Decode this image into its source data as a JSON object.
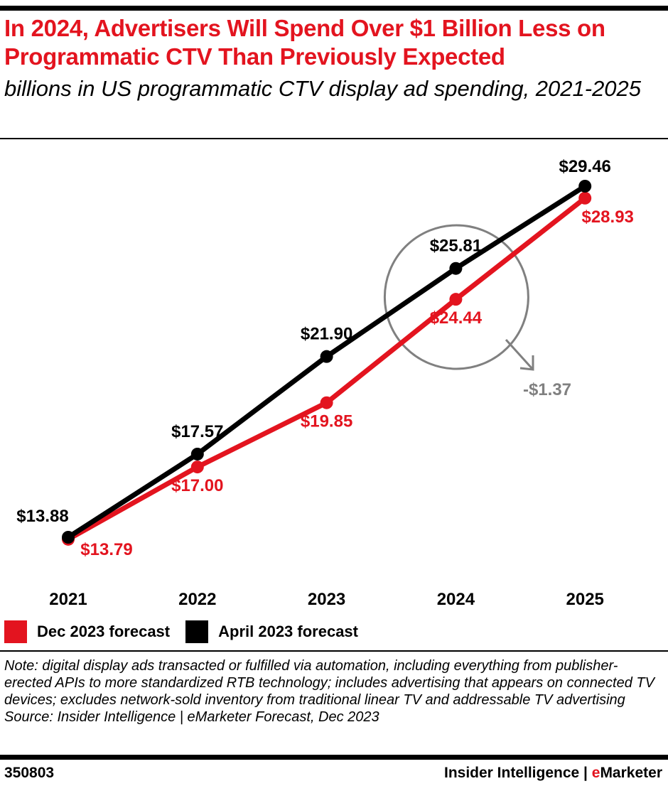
{
  "header": {
    "title": "In 2024, Advertisers Will Spend Over $1 Billion Less on Programmatic CTV Than Previously Expected",
    "subtitle": "billions in US programmatic CTV display ad spending, 2021-2025"
  },
  "chart_data": {
    "type": "line",
    "title": "In 2024, Advertisers Will Spend Over $1 Billion Less on Programmatic CTV Than Previously Expected",
    "subtitle": "billions in US programmatic CTV display ad spending, 2021-2025",
    "categories": [
      "2021",
      "2022",
      "2023",
      "2024",
      "2025"
    ],
    "series": [
      {
        "name": "Dec 2023 forecast",
        "color": "#e3141f",
        "values": [
          13.79,
          17.0,
          19.85,
          24.44,
          28.93
        ],
        "labels": [
          "$13.79",
          "$17.00",
          "$19.85",
          "$24.44",
          "$28.93"
        ]
      },
      {
        "name": "April 2023 forecast",
        "color": "#000000",
        "values": [
          13.88,
          17.57,
          21.9,
          25.81,
          29.46
        ],
        "labels": [
          "$13.88",
          "$17.57",
          "$21.90",
          "$25.81",
          "$29.46"
        ]
      }
    ],
    "annotation": {
      "text": "-$1.37",
      "category": "2024",
      "color": "#808080"
    },
    "grid": false,
    "legend": "bottom-left"
  },
  "legend": [
    {
      "label": "Dec 2023 forecast",
      "color": "#e3141f"
    },
    {
      "label": "April 2023 forecast",
      "color": "#000000"
    }
  ],
  "footer": {
    "note": "Note: digital display ads transacted or fulfilled via automation, including everything from publisher-erected APIs to more standardized RTB technology; includes advertising that appears on connected TV devices; excludes network-sold inventory from traditional linear TV and addressable TV advertising",
    "source": "Source: Insider Intelligence | eMarketer Forecast, Dec 2023",
    "chart_id": "350803",
    "brand_prefix": "Insider Intelligence | ",
    "brand_e": "e",
    "brand_rest": "Marketer"
  }
}
